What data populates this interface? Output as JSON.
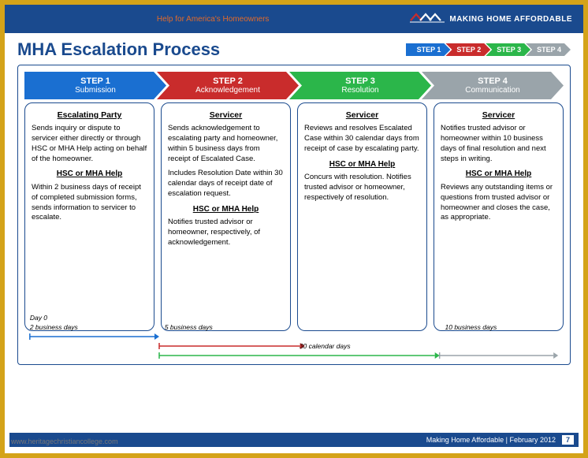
{
  "banner": {
    "help_text": "Help for America's Homeowners",
    "brand": "MAKING HOME AFFORDABLE"
  },
  "title": "MHA Escalation Process",
  "mini_steps": [
    {
      "label": "STEP 1",
      "bg": "#1a6fd1"
    },
    {
      "label": "STEP 2",
      "bg": "#c92c2c"
    },
    {
      "label": "STEP 3",
      "bg": "#2bb64a"
    },
    {
      "label": "STEP 4",
      "bg": "#9aa4aa"
    }
  ],
  "chevrons": [
    {
      "t1": "STEP 1",
      "t2": "Submission",
      "bg": "#1a6fd1"
    },
    {
      "t1": "STEP 2",
      "t2": "Acknowledgement",
      "bg": "#c92c2c"
    },
    {
      "t1": "STEP 3",
      "t2": "Resolution",
      "bg": "#2bb64a"
    },
    {
      "t1": "STEP 4",
      "t2": "Communication",
      "bg": "#9aa4aa"
    }
  ],
  "cards": [
    {
      "h": "Escalating Party",
      "p1": "Sends inquiry or dispute to servicer either directly or through HSC or MHA Help acting on behalf of the homeowner.",
      "sub": "HSC or MHA Help",
      "p2": "Within 2 business days of receipt of completed submission forms, sends information to servicer to escalate."
    },
    {
      "h": "Servicer",
      "p1": "Sends acknowledgement to escalating party and homeowner, within 5 business days from receipt of Escalated Case.",
      "p1b": "Includes Resolution Date within 30 calendar days of receipt date of escalation request.",
      "sub": "HSC or MHA Help",
      "p2": "Notifies trusted advisor or homeowner, respectively, of acknowledgement."
    },
    {
      "h": "Servicer",
      "p1": "Reviews and resolves Escalated Case within 30 calendar days from receipt of case by escalating party.",
      "sub": "HSC or MHA Help",
      "p2": "Concurs with resolution. Notifies trusted advisor or homeowner, respectively of resolution."
    },
    {
      "h": "Servicer",
      "p1": "Notifies trusted advisor or homeowner within 10 business days of final resolution and next steps in writing.",
      "sub": "HSC or MHA Help",
      "p2": "Reviews any outstanding items or questions from trusted advisor or homeowner  and closes the case, as appropriate."
    }
  ],
  "timeline": {
    "day0": "Day 0",
    "t1": {
      "label": "2 business days",
      "color": "#1a6fd1",
      "left_pct": 1,
      "right_pct": 25
    },
    "t2": {
      "label": "5 business days",
      "color": "#c92c2c",
      "left_pct": 25,
      "right_pct": 52
    },
    "t3": {
      "label": "30 calendar days",
      "color": "#2bb64a",
      "left_pct": 25,
      "right_pct": 77
    },
    "t4": {
      "label": "10 business days",
      "color": "#9aa4aa",
      "left_pct": 77,
      "right_pct": 99
    }
  },
  "footer": {
    "text": "Making Home Affordable | February 2012",
    "page": "7"
  },
  "watermark": "www.heritagechristiancollege.com",
  "colors": {
    "frame": "#d4a319",
    "navy": "#1a4a8e",
    "card_border": "#1a4a8e"
  }
}
